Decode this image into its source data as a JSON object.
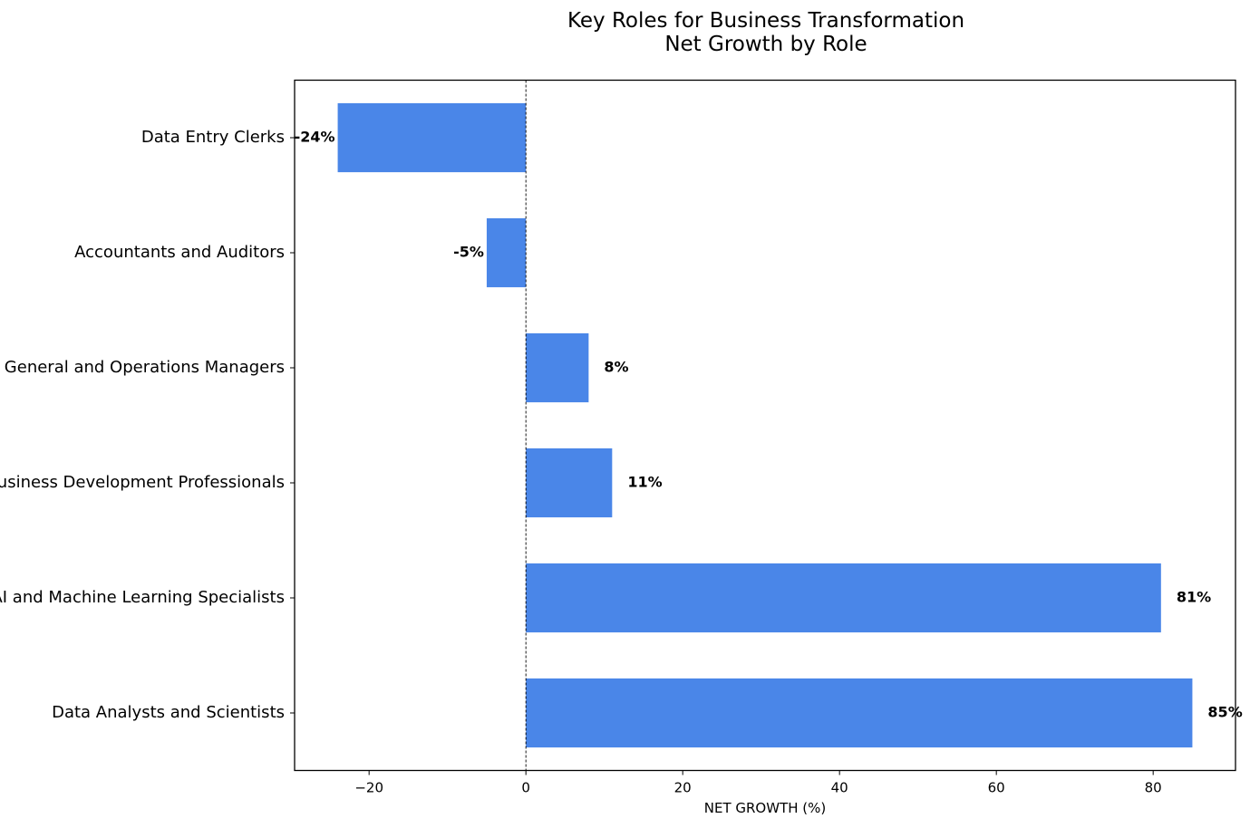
{
  "chart_data": {
    "type": "bar",
    "orientation": "horizontal",
    "title": "Key Roles for Business Transformation",
    "subtitle": "Net Growth by Role",
    "xlabel": "NET GROWTH (%)",
    "ylabel": "",
    "categories": [
      "Data Entry Clerks",
      "Accountants and Auditors",
      "General and Operations Managers",
      "Business Development Professionals",
      "AI and Machine Learning Specialists",
      "Data Analysts and Scientists"
    ],
    "values": [
      -24,
      -5,
      8,
      11,
      81,
      85
    ],
    "data_labels": [
      "-24%",
      "-5%",
      "8%",
      "11%",
      "81%",
      "85%"
    ],
    "xlim": [
      -29.5,
      90.5
    ],
    "xticks": [
      -20,
      0,
      20,
      40,
      60,
      80
    ],
    "xtick_labels": [
      "−20",
      "0",
      "20",
      "40",
      "60",
      "80"
    ],
    "bar_color": "#4A86E8",
    "zero_line": "dashed",
    "grid": false,
    "legend": "none"
  }
}
